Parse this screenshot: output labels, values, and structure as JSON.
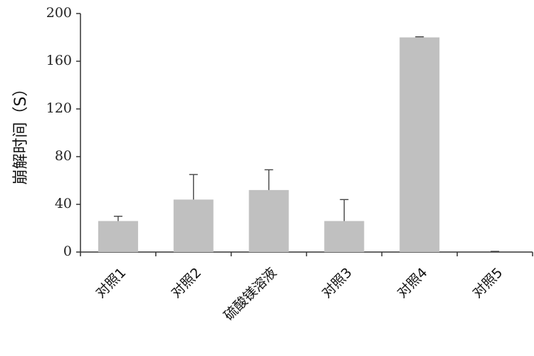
{
  "chart_data": {
    "type": "bar",
    "title": "",
    "xlabel": "",
    "ylabel": "崩解时间（S）",
    "categories": [
      "对照1",
      "对照2",
      "硫酸镁溶液",
      "对照3",
      "对照4",
      "对照5"
    ],
    "values": [
      26,
      44,
      52,
      26,
      180,
      0
    ],
    "error_upper": [
      4,
      21,
      17,
      18,
      0.5,
      0
    ],
    "ylim": [
      0,
      200
    ],
    "yticks": [
      "0",
      "40",
      "80",
      "120",
      "160",
      "200"
    ],
    "ytick_values": [
      0,
      40,
      80,
      120,
      160,
      200
    ],
    "grid": false,
    "bar_color": "#c0c0c0",
    "axis_color": "#333333"
  }
}
